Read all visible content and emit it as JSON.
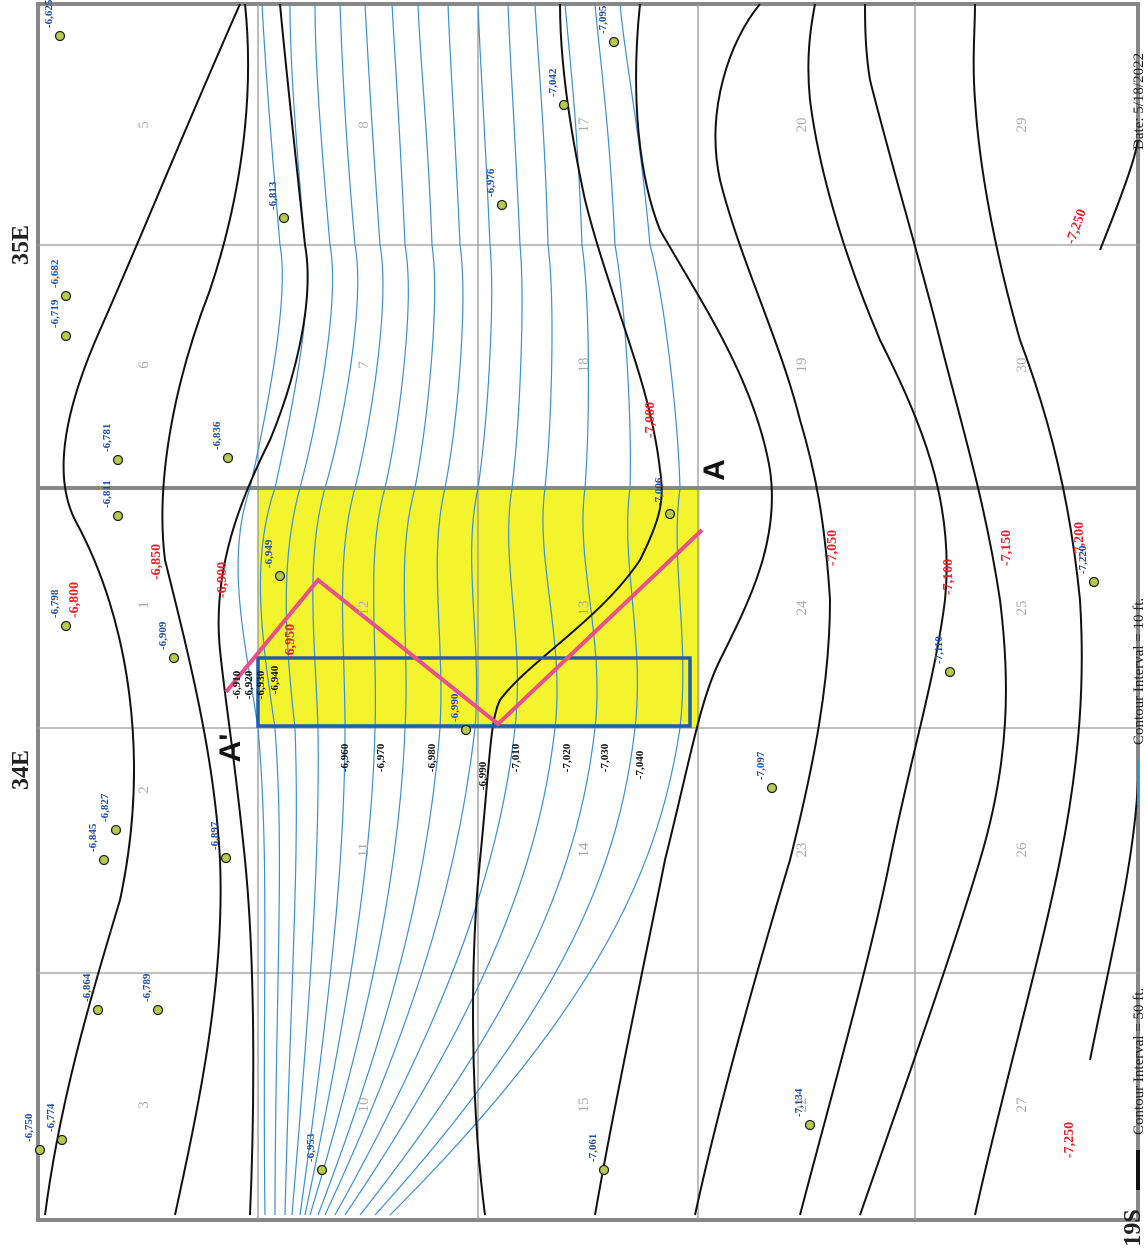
{
  "map": {
    "township_label": "19S",
    "range_west": "34E",
    "range_east": "35E",
    "date": "Date: 5/18/2022",
    "legend": {
      "major": "Contour Interval = 50 ft.",
      "minor": "Contour Interval = 10 ft."
    },
    "colors": {
      "major_contour": "#111111",
      "minor_contour": "#3a8fd6",
      "major_label": "#e8202a",
      "well_label": "#1e4fa8",
      "well_fill": "#b5cc4a",
      "highlight": "#f3f32e",
      "cross_section": "#e8508a",
      "study_box": "#1f5fa8"
    },
    "cross_section": {
      "start": "A",
      "end": "A'"
    },
    "sections": [
      "3",
      "2",
      "1",
      "6",
      "5",
      "10",
      "11",
      "12",
      "7",
      "8",
      "15",
      "14",
      "13",
      "18",
      "17",
      "22",
      "23",
      "24",
      "19",
      "20",
      "27",
      "26",
      "25",
      "30",
      "29"
    ],
    "wells": [
      {
        "value": "-6,774"
      },
      {
        "value": "-6,750"
      },
      {
        "value": "-6,864"
      },
      {
        "value": "-6,789"
      },
      {
        "value": "-6,845"
      },
      {
        "value": "-6,827"
      },
      {
        "value": "-6,897"
      },
      {
        "value": "-6,909"
      },
      {
        "value": "-6,798"
      },
      {
        "value": "-6,953"
      },
      {
        "value": "-6,990"
      },
      {
        "value": "-6,949"
      },
      {
        "value": "-6,811"
      },
      {
        "value": "-6,836"
      },
      {
        "value": "-6,781"
      },
      {
        "value": "-6,719"
      },
      {
        "value": "-6,682"
      },
      {
        "value": "-6,813"
      },
      {
        "value": "-6,625"
      },
      {
        "value": "-6,976"
      },
      {
        "value": "-7,042"
      },
      {
        "value": "-7,095"
      },
      {
        "value": "-7,006"
      },
      {
        "value": "-7,061"
      },
      {
        "value": "-7,134"
      },
      {
        "value": "-7,097"
      },
      {
        "value": "-7,110"
      },
      {
        "value": "-7,220"
      }
    ],
    "contour_labels_major": [
      "-6,800",
      "-6,850",
      "-6,900",
      "-6,950",
      "-7,000",
      "-7,050",
      "-7,100",
      "-7,150",
      "-7,200",
      "-7,250",
      "-7,250"
    ],
    "contour_labels_minor": [
      "-6,910",
      "-6,920",
      "-6,930",
      "-6,940",
      "-6,960",
      "-6,970",
      "-6,980",
      "-6,990",
      "-7,010",
      "-7,020",
      "-7,030",
      "-7,040"
    ]
  }
}
